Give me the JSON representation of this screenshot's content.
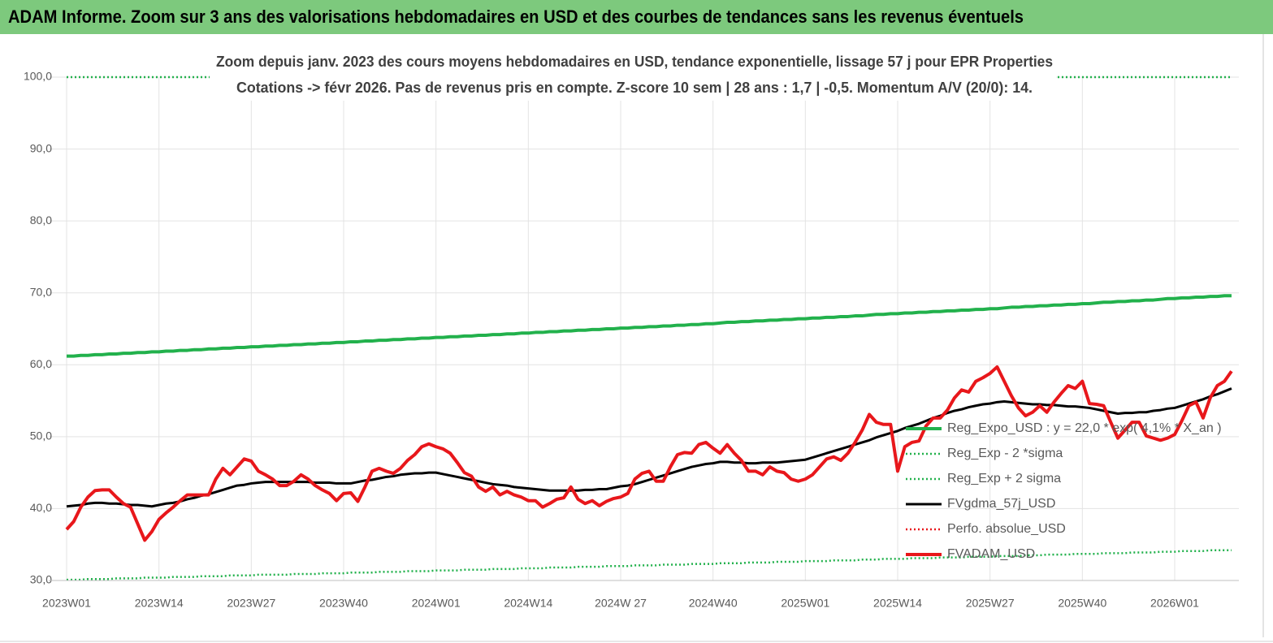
{
  "chart_data": {
    "type": "line",
    "title": "ADAM Informe. Zoom sur 3 ans des valorisations hebdomadaires en USD et des courbes de tendances sans les revenus éventuels",
    "subtitle": [
      "Zoom depuis janv. 2023 des cours moyens hebdomadaires en USD, tendance exponentielle, lissage 57 j pour EPR Properties",
      "Cotations -> févr 2026.  Pas de revenus pris en compte. Z-score 10 sem | 28 ans : 1,7 | -0,5. Momentum A/V (20/0): 14."
    ],
    "ylim": [
      30,
      100
    ],
    "yticks": [
      {
        "value": 30,
        "label": "30,0"
      },
      {
        "value": 40,
        "label": "40,0"
      },
      {
        "value": 50,
        "label": "50,0"
      },
      {
        "value": 60,
        "label": "60,0"
      },
      {
        "value": 70,
        "label": "70,0"
      },
      {
        "value": 80,
        "label": "80,0"
      },
      {
        "value": 90,
        "label": "90,0"
      },
      {
        "value": 100,
        "label": "100,0"
      }
    ],
    "grid": true,
    "legend_position": "right",
    "categories": [
      "2023W01",
      null,
      null,
      null,
      null,
      null,
      null,
      null,
      null,
      null,
      null,
      null,
      null,
      "2023W14",
      null,
      null,
      null,
      null,
      null,
      null,
      null,
      null,
      null,
      null,
      null,
      null,
      "2023W27",
      null,
      null,
      null,
      null,
      null,
      null,
      null,
      null,
      null,
      null,
      null,
      null,
      "2023W40",
      null,
      null,
      null,
      null,
      null,
      null,
      null,
      null,
      null,
      null,
      null,
      null,
      "2024W01",
      null,
      null,
      null,
      null,
      null,
      null,
      null,
      null,
      null,
      null,
      null,
      null,
      "2024W14",
      null,
      null,
      null,
      null,
      null,
      null,
      null,
      null,
      null,
      null,
      null,
      null,
      "2024W 27",
      null,
      null,
      null,
      null,
      null,
      null,
      null,
      null,
      null,
      null,
      null,
      null,
      "2024W40",
      null,
      null,
      null,
      null,
      null,
      null,
      null,
      null,
      null,
      null,
      null,
      null,
      "2025W01",
      null,
      null,
      null,
      null,
      null,
      null,
      null,
      null,
      null,
      null,
      null,
      null,
      "2025W14",
      null,
      null,
      null,
      null,
      null,
      null,
      null,
      null,
      null,
      null,
      null,
      null,
      "2025W27",
      null,
      null,
      null,
      null,
      null,
      null,
      null,
      null,
      null,
      null,
      null,
      null,
      "2025W40",
      null,
      null,
      null,
      null,
      null,
      null,
      null,
      null,
      null,
      null,
      null,
      null,
      "2026W01",
      null,
      null,
      null,
      null,
      null,
      null,
      null,
      null
    ],
    "series": [
      {
        "name": "Reg_Expo_USD : y = 22,0 * exp( 4,1% * X_an )",
        "color": "#22b14c",
        "style": "thick",
        "values": [
          61.2,
          61.2,
          61.3,
          61.3,
          61.4,
          61.4,
          61.5,
          61.5,
          61.6,
          61.6,
          61.7,
          61.7,
          61.8,
          61.8,
          61.9,
          61.9,
          62.0,
          62.0,
          62.1,
          62.1,
          62.2,
          62.2,
          62.3,
          62.3,
          62.4,
          62.4,
          62.5,
          62.5,
          62.6,
          62.6,
          62.7,
          62.7,
          62.8,
          62.8,
          62.9,
          62.9,
          63.0,
          63.0,
          63.1,
          63.1,
          63.2,
          63.2,
          63.3,
          63.3,
          63.4,
          63.4,
          63.5,
          63.5,
          63.6,
          63.6,
          63.7,
          63.7,
          63.8,
          63.8,
          63.9,
          63.9,
          64.0,
          64.0,
          64.1,
          64.1,
          64.2,
          64.2,
          64.3,
          64.3,
          64.4,
          64.4,
          64.5,
          64.5,
          64.6,
          64.6,
          64.7,
          64.7,
          64.8,
          64.8,
          64.9,
          64.9,
          65.0,
          65.0,
          65.1,
          65.1,
          65.2,
          65.2,
          65.3,
          65.3,
          65.4,
          65.4,
          65.5,
          65.5,
          65.6,
          65.6,
          65.7,
          65.7,
          65.8,
          65.9,
          65.9,
          66.0,
          66.0,
          66.1,
          66.1,
          66.2,
          66.2,
          66.3,
          66.3,
          66.4,
          66.4,
          66.5,
          66.5,
          66.6,
          66.6,
          66.7,
          66.7,
          66.8,
          66.8,
          66.9,
          67.0,
          67.0,
          67.1,
          67.1,
          67.2,
          67.2,
          67.3,
          67.3,
          67.4,
          67.4,
          67.5,
          67.5,
          67.6,
          67.6,
          67.7,
          67.7,
          67.8,
          67.8,
          67.9,
          68.0,
          68.0,
          68.1,
          68.1,
          68.2,
          68.2,
          68.3,
          68.3,
          68.4,
          68.4,
          68.5,
          68.5,
          68.6,
          68.7,
          68.7,
          68.8,
          68.8,
          68.9,
          68.9,
          69.0,
          69.0,
          69.1,
          69.2,
          69.2,
          69.3,
          69.3,
          69.4,
          69.4,
          69.5,
          69.5,
          69.6,
          69.6
        ]
      },
      {
        "name": "Reg_Exp - 2 *sigma",
        "color": "#22b14c",
        "style": "dotted",
        "values": [
          30.1,
          30.1,
          30.1,
          30.2,
          30.2,
          30.2,
          30.2,
          30.3,
          30.3,
          30.3,
          30.3,
          30.4,
          30.4,
          30.4,
          30.4,
          30.5,
          30.5,
          30.5,
          30.5,
          30.6,
          30.6,
          30.6,
          30.6,
          30.7,
          30.7,
          30.7,
          30.7,
          30.8,
          30.8,
          30.8,
          30.8,
          30.8,
          30.9,
          30.9,
          30.9,
          30.9,
          31.0,
          31.0,
          31.0,
          31.0,
          31.1,
          31.1,
          31.1,
          31.1,
          31.2,
          31.2,
          31.2,
          31.2,
          31.3,
          31.3,
          31.3,
          31.3,
          31.4,
          31.4,
          31.4,
          31.4,
          31.5,
          31.5,
          31.5,
          31.5,
          31.6,
          31.6,
          31.6,
          31.6,
          31.7,
          31.7,
          31.7,
          31.7,
          31.8,
          31.8,
          31.8,
          31.8,
          31.9,
          31.9,
          31.9,
          31.9,
          32.0,
          32.0,
          32.0,
          32.0,
          32.1,
          32.1,
          32.1,
          32.1,
          32.2,
          32.2,
          32.2,
          32.2,
          32.3,
          32.3,
          32.3,
          32.3,
          32.4,
          32.4,
          32.4,
          32.4,
          32.5,
          32.5,
          32.5,
          32.5,
          32.6,
          32.6,
          32.6,
          32.6,
          32.7,
          32.7,
          32.7,
          32.7,
          32.8,
          32.8,
          32.8,
          32.8,
          32.9,
          32.9,
          32.9,
          33.0,
          33.0,
          33.0,
          33.0,
          33.1,
          33.1,
          33.1,
          33.1,
          33.2,
          33.2,
          33.2,
          33.2,
          33.3,
          33.3,
          33.3,
          33.3,
          33.4,
          33.4,
          33.4,
          33.4,
          33.5,
          33.5,
          33.5,
          33.6,
          33.6,
          33.6,
          33.6,
          33.7,
          33.7,
          33.7,
          33.7,
          33.8,
          33.8,
          33.8,
          33.8,
          33.9,
          33.9,
          33.9,
          33.9,
          34.0,
          34.0,
          34.0,
          34.1,
          34.1,
          34.1,
          34.1,
          34.2,
          34.2,
          34.2,
          34.2
        ]
      },
      {
        "name": "Reg_Exp + 2 sigma",
        "color": "#22b14c",
        "style": "dotted",
        "values": [
          100,
          100,
          100,
          100,
          100,
          100,
          100,
          100,
          100,
          100,
          100,
          100,
          100,
          100,
          100,
          100,
          100,
          100,
          100,
          100,
          100,
          100,
          100,
          100,
          100,
          100,
          100,
          100,
          100,
          100,
          100,
          100,
          100,
          100,
          100,
          100,
          100,
          100,
          100,
          100,
          100,
          100,
          100,
          100,
          100,
          100,
          100,
          100,
          100,
          100,
          100,
          100,
          100,
          100,
          100,
          100,
          100,
          100,
          100,
          100,
          100,
          100,
          100,
          100,
          100,
          100,
          100,
          100,
          100,
          100,
          100,
          100,
          100,
          100,
          100,
          100,
          100,
          100,
          100,
          100,
          100,
          100,
          100,
          100,
          100,
          100,
          100,
          100,
          100,
          100,
          100,
          100,
          100,
          100,
          100,
          100,
          100,
          100,
          100,
          100,
          100,
          100,
          100,
          100,
          100,
          100,
          100,
          100,
          100,
          100,
          100,
          100,
          100,
          100,
          100,
          100,
          100,
          100,
          100,
          100,
          100,
          100,
          100,
          100,
          100,
          100,
          100,
          100,
          100,
          100,
          100,
          100,
          100,
          100,
          100,
          100,
          100,
          100,
          100,
          100,
          100,
          100,
          100,
          100,
          100,
          100,
          100,
          100,
          100,
          100,
          100,
          100,
          100,
          100,
          100,
          100,
          100,
          100,
          100,
          100,
          100,
          100,
          100,
          100,
          100
        ]
      },
      {
        "name": "FVgdma_57j_USD",
        "color": "#000000",
        "style": "solid",
        "values": [
          40.3,
          40.4,
          40.5,
          40.7,
          40.8,
          40.8,
          40.7,
          40.7,
          40.6,
          40.5,
          40.5,
          40.4,
          40.3,
          40.5,
          40.7,
          40.8,
          41.0,
          41.3,
          41.5,
          41.8,
          42.0,
          42.3,
          42.6,
          42.9,
          43.2,
          43.3,
          43.5,
          43.6,
          43.7,
          43.7,
          43.7,
          43.7,
          43.7,
          43.7,
          43.7,
          43.6,
          43.6,
          43.6,
          43.5,
          43.5,
          43.5,
          43.7,
          43.9,
          44.0,
          44.2,
          44.4,
          44.5,
          44.7,
          44.8,
          44.9,
          44.9,
          45.0,
          45.0,
          44.8,
          44.6,
          44.4,
          44.2,
          44.0,
          43.8,
          43.6,
          43.4,
          43.3,
          43.2,
          43.0,
          42.9,
          42.8,
          42.7,
          42.6,
          42.5,
          42.5,
          42.5,
          42.5,
          42.5,
          42.6,
          42.6,
          42.7,
          42.7,
          42.9,
          43.1,
          43.2,
          43.4,
          43.7,
          44.0,
          44.3,
          44.6,
          44.9,
          45.2,
          45.5,
          45.8,
          46.0,
          46.2,
          46.3,
          46.5,
          46.5,
          46.4,
          46.4,
          46.3,
          46.3,
          46.4,
          46.4,
          46.4,
          46.5,
          46.6,
          46.7,
          46.8,
          47.1,
          47.4,
          47.7,
          48.0,
          48.3,
          48.6,
          48.9,
          49.2,
          49.5,
          49.9,
          50.2,
          50.5,
          50.8,
          51.2,
          51.5,
          51.8,
          52.2,
          52.6,
          52.9,
          53.3,
          53.6,
          53.8,
          54.1,
          54.3,
          54.5,
          54.6,
          54.8,
          54.9,
          54.8,
          54.7,
          54.6,
          54.5,
          54.5,
          54.4,
          54.4,
          54.3,
          54.2,
          54.2,
          54.1,
          54.0,
          53.8,
          53.6,
          53.4,
          53.2,
          53.3,
          53.3,
          53.4,
          53.4,
          53.6,
          53.7,
          53.9,
          54.0,
          54.3,
          54.6,
          54.9,
          55.2,
          55.6,
          55.9,
          56.3,
          56.7
        ]
      },
      {
        "name": "Perfo. absolue_USD",
        "color": "#e8171b",
        "style": "dotted",
        "values": [
          null,
          null,
          null,
          null,
          null,
          null,
          null,
          null,
          null,
          null,
          null,
          null,
          null,
          null,
          null,
          null,
          null,
          null,
          null,
          null,
          null,
          null,
          null,
          null,
          null,
          null,
          null,
          null,
          null,
          null,
          null,
          null,
          null,
          null,
          null,
          null,
          null,
          null,
          null,
          null,
          null,
          null,
          null,
          null,
          null,
          null,
          null,
          null,
          null,
          null,
          null,
          null,
          null,
          null,
          null,
          null,
          null,
          null,
          null,
          null,
          null,
          null,
          null,
          null,
          null,
          null,
          null,
          null,
          null,
          null,
          null,
          null,
          null,
          null,
          null,
          null,
          null,
          null,
          null,
          null,
          null,
          null,
          null,
          null,
          null,
          null,
          null,
          null,
          null,
          null,
          null,
          null,
          null,
          null,
          null,
          null,
          null,
          null,
          null,
          null,
          null,
          null,
          null,
          null,
          null,
          null,
          null,
          null,
          null,
          null,
          null,
          null,
          null,
          null,
          null,
          null,
          null,
          null,
          null,
          null,
          null,
          null,
          null,
          null,
          null,
          null,
          null,
          null,
          null,
          null,
          null,
          null,
          null,
          null,
          null,
          null,
          null,
          null,
          null,
          null,
          null,
          null,
          null,
          null,
          null,
          null,
          null,
          null,
          null,
          null,
          null,
          null,
          null,
          null,
          null,
          null,
          null,
          null,
          null,
          null,
          null,
          null,
          null,
          null,
          null
        ]
      },
      {
        "name": "FVADAM_USD",
        "color": "#e8171b",
        "style": "thick",
        "values": [
          37.1,
          38.2,
          40.2,
          41.6,
          42.5,
          42.6,
          42.6,
          41.6,
          40.7,
          40.2,
          37.9,
          35.6,
          36.8,
          38.5,
          39.4,
          40.2,
          41.1,
          41.9,
          41.9,
          41.9,
          41.9,
          44.1,
          45.6,
          44.7,
          45.8,
          46.9,
          46.6,
          45.2,
          44.7,
          44.1,
          43.2,
          43.2,
          43.8,
          44.7,
          44.1,
          43.2,
          42.6,
          42.1,
          41.1,
          42.1,
          42.2,
          41.0,
          43.0,
          45.2,
          45.6,
          45.2,
          44.9,
          45.6,
          46.7,
          47.5,
          48.6,
          49.0,
          48.6,
          48.3,
          47.7,
          46.4,
          45.0,
          44.5,
          43.0,
          42.4,
          43.0,
          41.9,
          42.4,
          41.9,
          41.6,
          41.1,
          41.1,
          40.2,
          40.7,
          41.3,
          41.5,
          43.0,
          41.3,
          40.7,
          41.1,
          40.4,
          41.0,
          41.4,
          41.6,
          42.1,
          44.1,
          44.9,
          45.2,
          43.8,
          43.8,
          45.8,
          47.5,
          47.8,
          47.7,
          48.9,
          49.2,
          48.4,
          47.7,
          48.9,
          47.7,
          46.7,
          45.2,
          45.2,
          44.7,
          45.8,
          45.2,
          45.0,
          44.1,
          43.8,
          44.1,
          44.7,
          45.8,
          46.9,
          47.2,
          46.7,
          47.7,
          49.2,
          50.9,
          53.1,
          52.0,
          51.7,
          51.7,
          45.2,
          48.6,
          49.2,
          49.4,
          51.5,
          52.6,
          52.6,
          53.7,
          55.4,
          56.5,
          56.2,
          57.7,
          58.2,
          58.8,
          59.7,
          57.7,
          55.7,
          54.0,
          52.9,
          53.4,
          54.3,
          53.4,
          54.8,
          56.0,
          57.1,
          56.7,
          57.7,
          54.6,
          54.5,
          54.3,
          52.0,
          49.8,
          50.9,
          52.0,
          52.0,
          50.1,
          49.8,
          49.5,
          49.8,
          50.3,
          52.2,
          54.3,
          54.8,
          52.6,
          55.4,
          57.1,
          57.7,
          59.1
        ]
      }
    ]
  }
}
